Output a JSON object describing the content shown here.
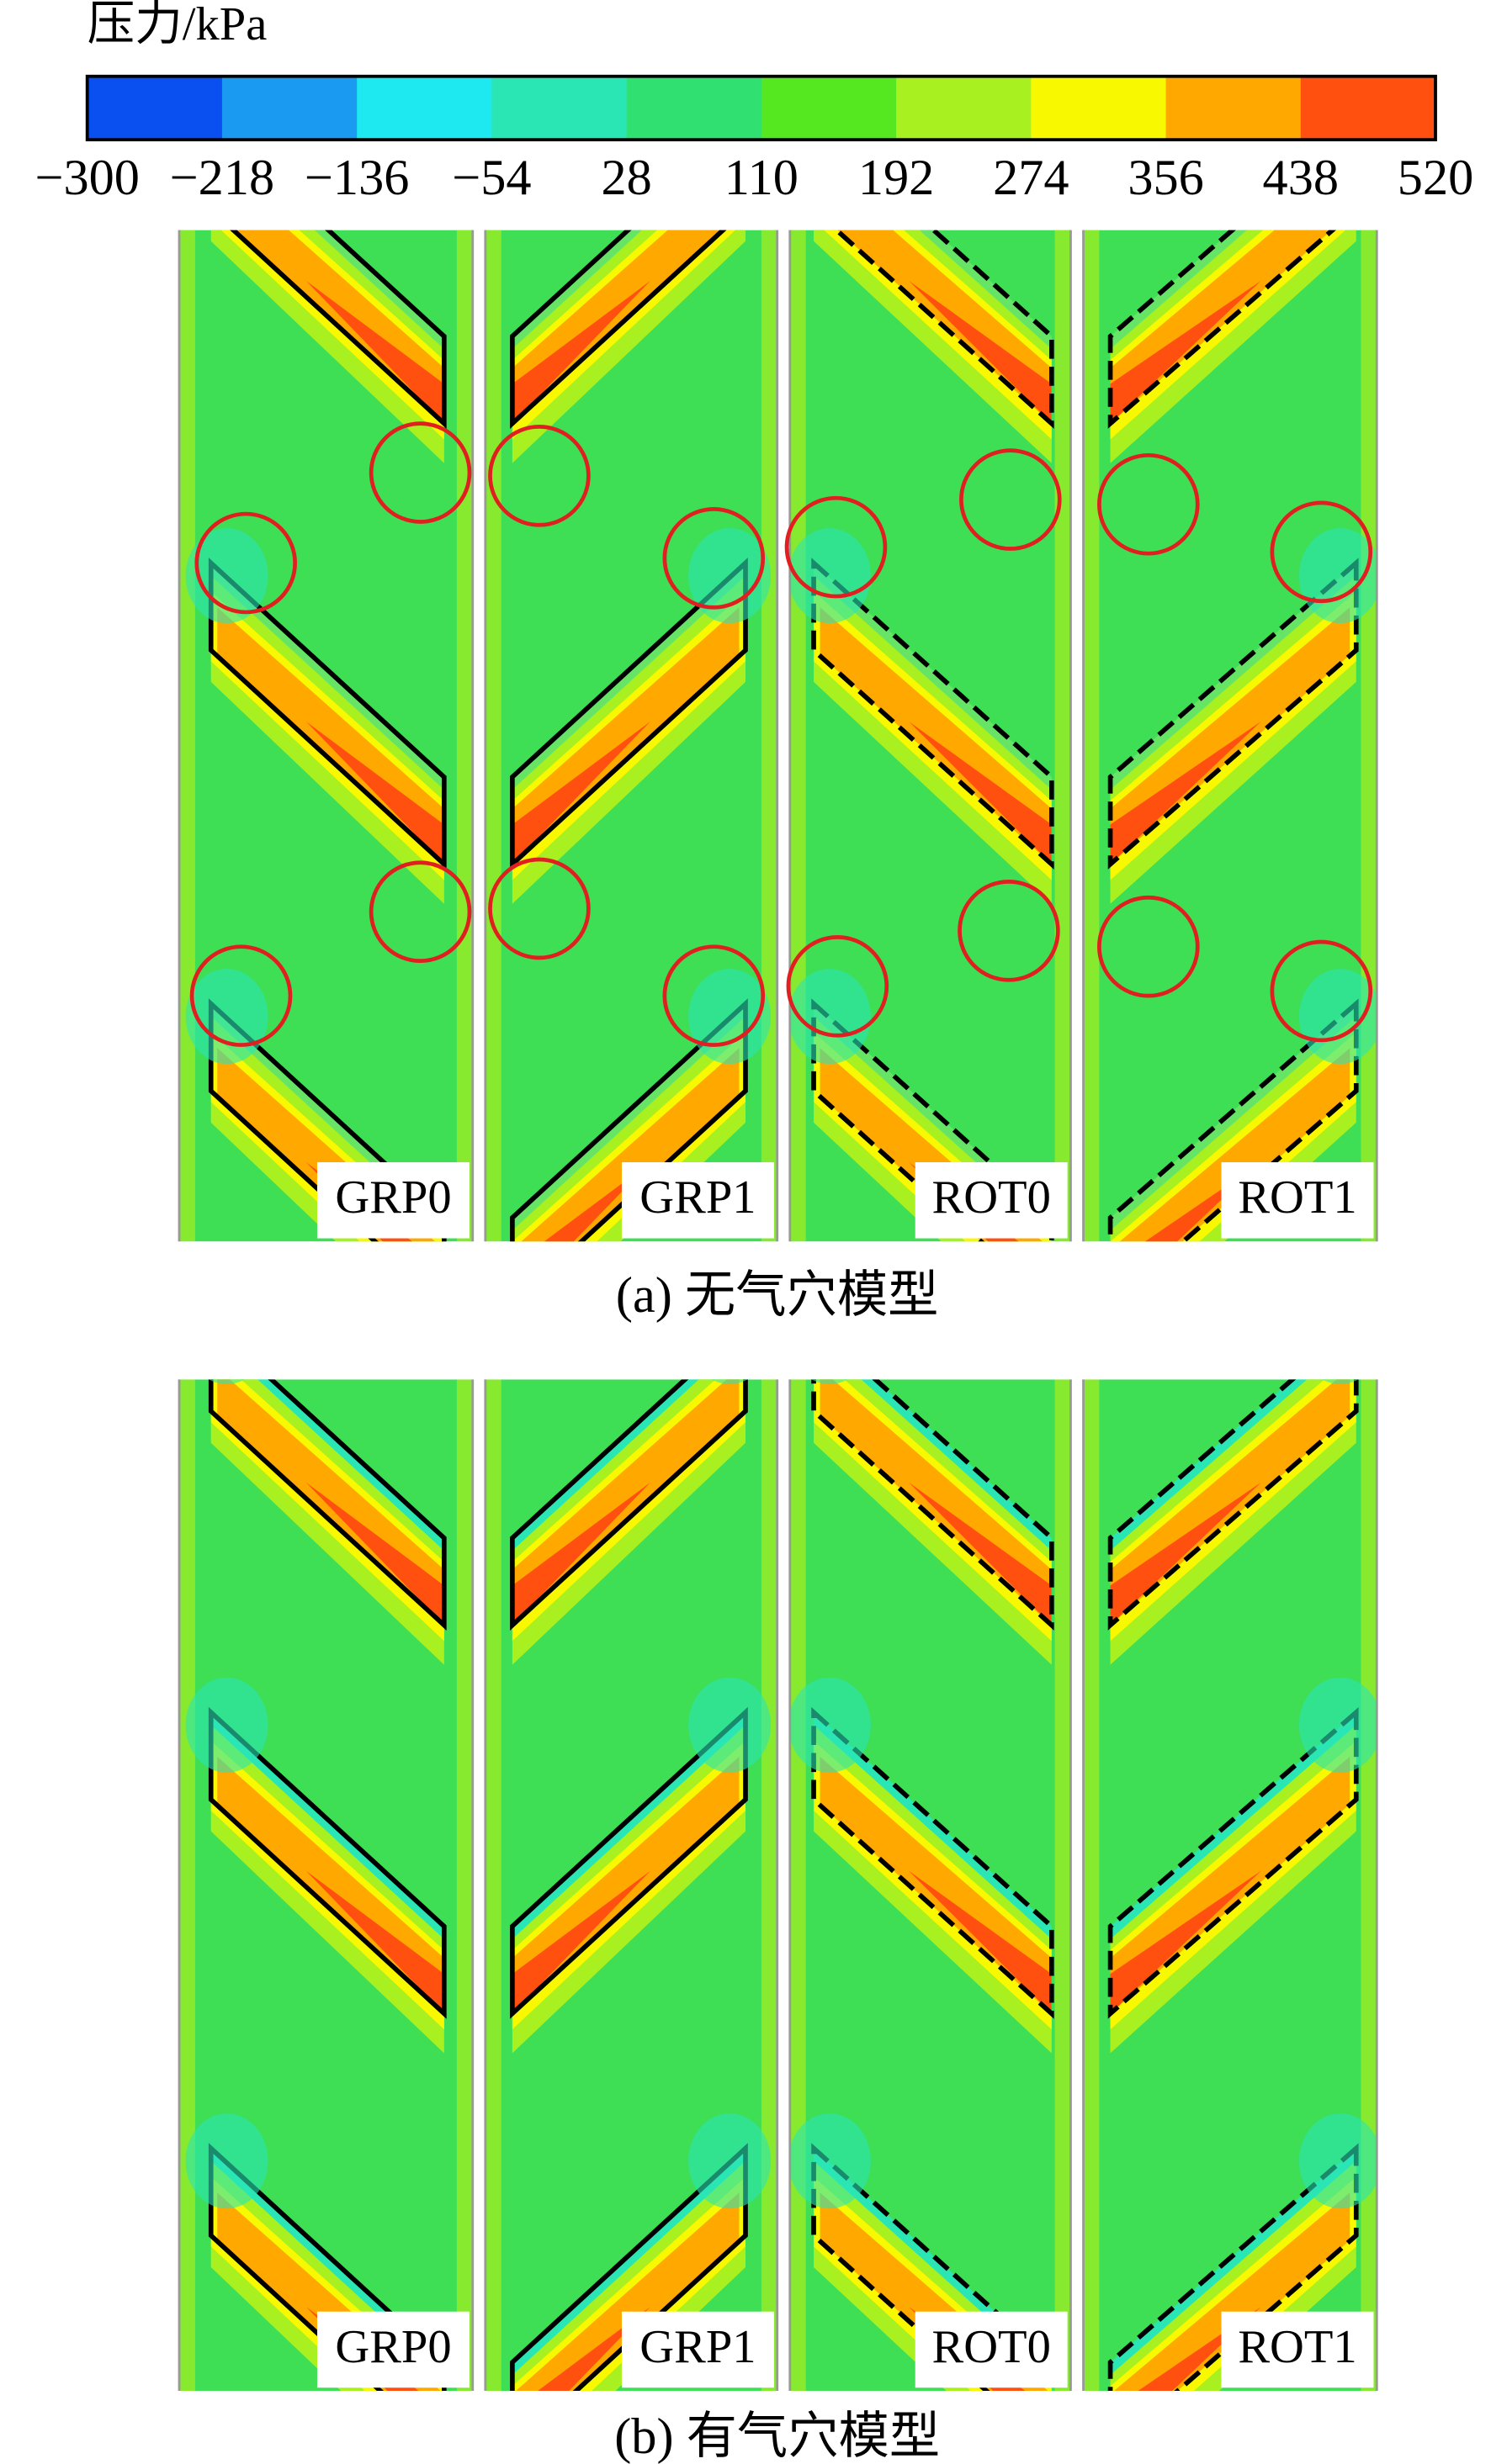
{
  "colorbar": {
    "title": "压力/kPa",
    "ticks": [
      "−300",
      "−218",
      "−136",
      "−54",
      "28",
      "110",
      "192",
      "274",
      "356",
      "438",
      "520"
    ],
    "colors": [
      "#0a4ff0",
      "#1a9af0",
      "#1ee8f0",
      "#2ae6b4",
      "#30e070",
      "#55e820",
      "#a8f020",
      "#f8f800",
      "#ffa800",
      "#ff5010"
    ]
  },
  "panels_a": {
    "labels": [
      "GRP0",
      "GRP1",
      "ROT0",
      "ROT1"
    ],
    "caption": "(a) 无气穴模型"
  },
  "panels_b": {
    "labels": [
      "GRP0",
      "GRP1",
      "ROT0",
      "ROT1"
    ],
    "caption": "(b) 有气穴模型"
  }
}
